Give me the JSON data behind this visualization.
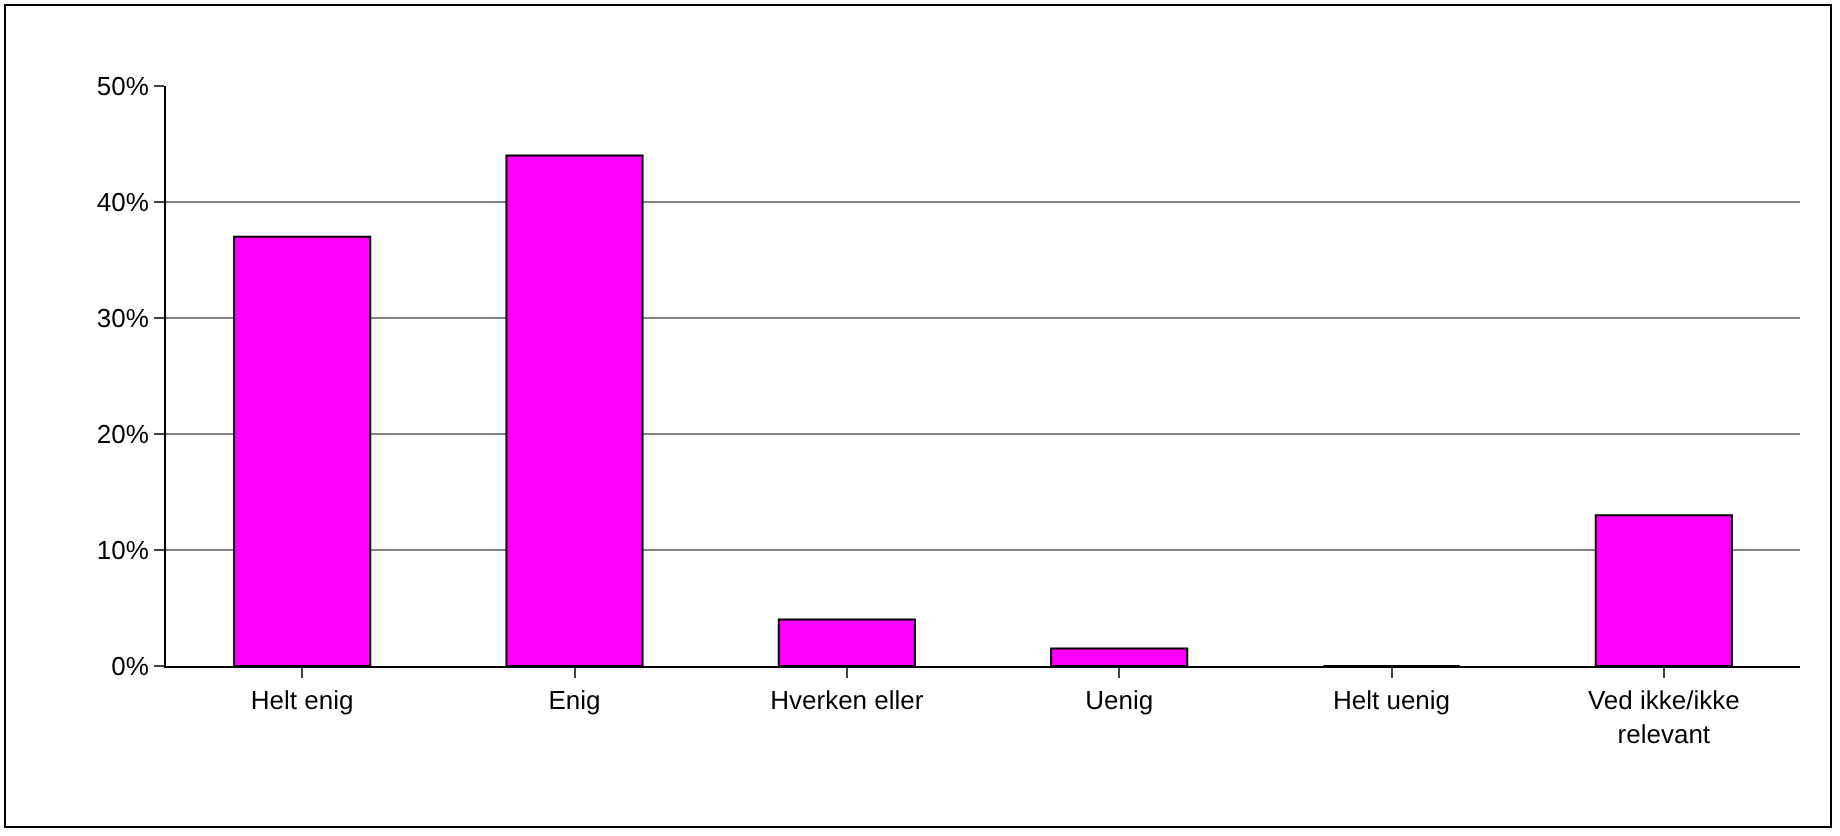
{
  "chart_data": {
    "type": "bar",
    "categories": [
      "Helt enig",
      "Enig",
      "Hverken eller",
      "Uenig",
      "Helt uenig",
      "Ved ikke/ikke relevant"
    ],
    "values": [
      37,
      44,
      4,
      1.5,
      0,
      13
    ],
    "color": "#ff00ff",
    "ylim": [
      0,
      50
    ],
    "yticks": [
      {
        "value": 0,
        "label": "0%"
      },
      {
        "value": 10,
        "label": "10%"
      },
      {
        "value": 20,
        "label": "20%"
      },
      {
        "value": 30,
        "label": "30%"
      },
      {
        "value": 40,
        "label": "40%"
      },
      {
        "value": 50,
        "label": "50%"
      }
    ],
    "grid": "y"
  }
}
